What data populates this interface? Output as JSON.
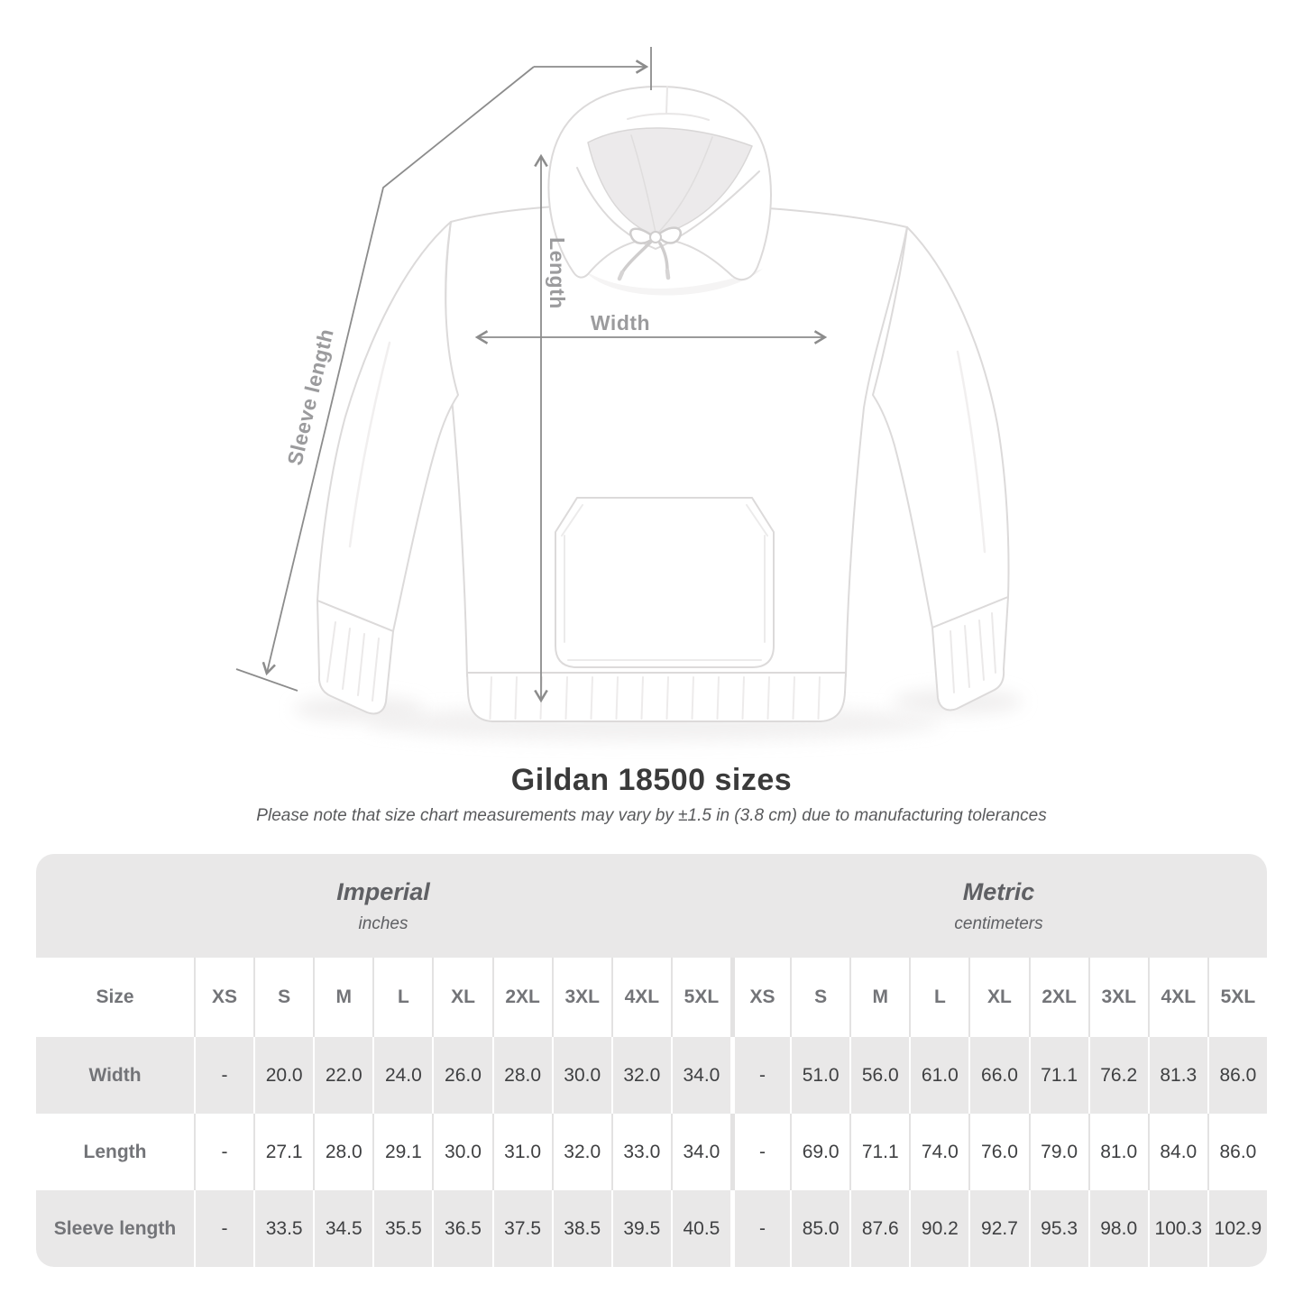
{
  "figure": {
    "labels": {
      "length": "Length",
      "width": "Width",
      "sleeve_length": "Sleeve length"
    }
  },
  "title": "Gildan 18500 sizes",
  "subtitle": "Please note that size chart measurements may vary by ±1.5 in (3.8 cm) due to manufacturing tolerances",
  "chart_data": {
    "type": "table",
    "row_header": "Size",
    "sections": [
      {
        "name": "Imperial",
        "unit": "inches",
        "sizes": [
          "XS",
          "S",
          "M",
          "L",
          "XL",
          "2XL",
          "3XL",
          "4XL",
          "5XL"
        ]
      },
      {
        "name": "Metric",
        "unit": "centimeters",
        "sizes": [
          "XS",
          "S",
          "M",
          "L",
          "XL",
          "2XL",
          "3XL",
          "4XL",
          "5XL"
        ]
      }
    ],
    "rows": [
      {
        "label": "Width",
        "imperial": [
          "-",
          "20.0",
          "22.0",
          "24.0",
          "26.0",
          "28.0",
          "30.0",
          "32.0",
          "34.0"
        ],
        "metric": [
          "-",
          "51.0",
          "56.0",
          "61.0",
          "66.0",
          "71.1",
          "76.2",
          "81.3",
          "86.0"
        ]
      },
      {
        "label": "Length",
        "imperial": [
          "-",
          "27.1",
          "28.0",
          "29.1",
          "30.0",
          "31.0",
          "32.0",
          "33.0",
          "34.0"
        ],
        "metric": [
          "-",
          "69.0",
          "71.1",
          "74.0",
          "76.0",
          "79.0",
          "81.0",
          "84.0",
          "86.0"
        ]
      },
      {
        "label": "Sleeve length",
        "imperial": [
          "-",
          "33.5",
          "34.5",
          "35.5",
          "36.5",
          "37.5",
          "38.5",
          "39.5",
          "40.5"
        ],
        "metric": [
          "-",
          "85.0",
          "87.6",
          "90.2",
          "92.7",
          "95.3",
          "98.0",
          "100.3",
          "102.9"
        ]
      }
    ]
  },
  "colors": {
    "table_band": "#e9e8e8",
    "row_alt": "#e9e8e8",
    "separator_on_white": "#e3e2e2",
    "separator_on_gray": "#ffffff",
    "header_text": "#737478",
    "value_text": "#3f4042",
    "title_text": "#3a3a3a",
    "note_text": "#595a5c",
    "measure_line": "#8c8c8c",
    "measure_label": "#9b9b9d"
  }
}
